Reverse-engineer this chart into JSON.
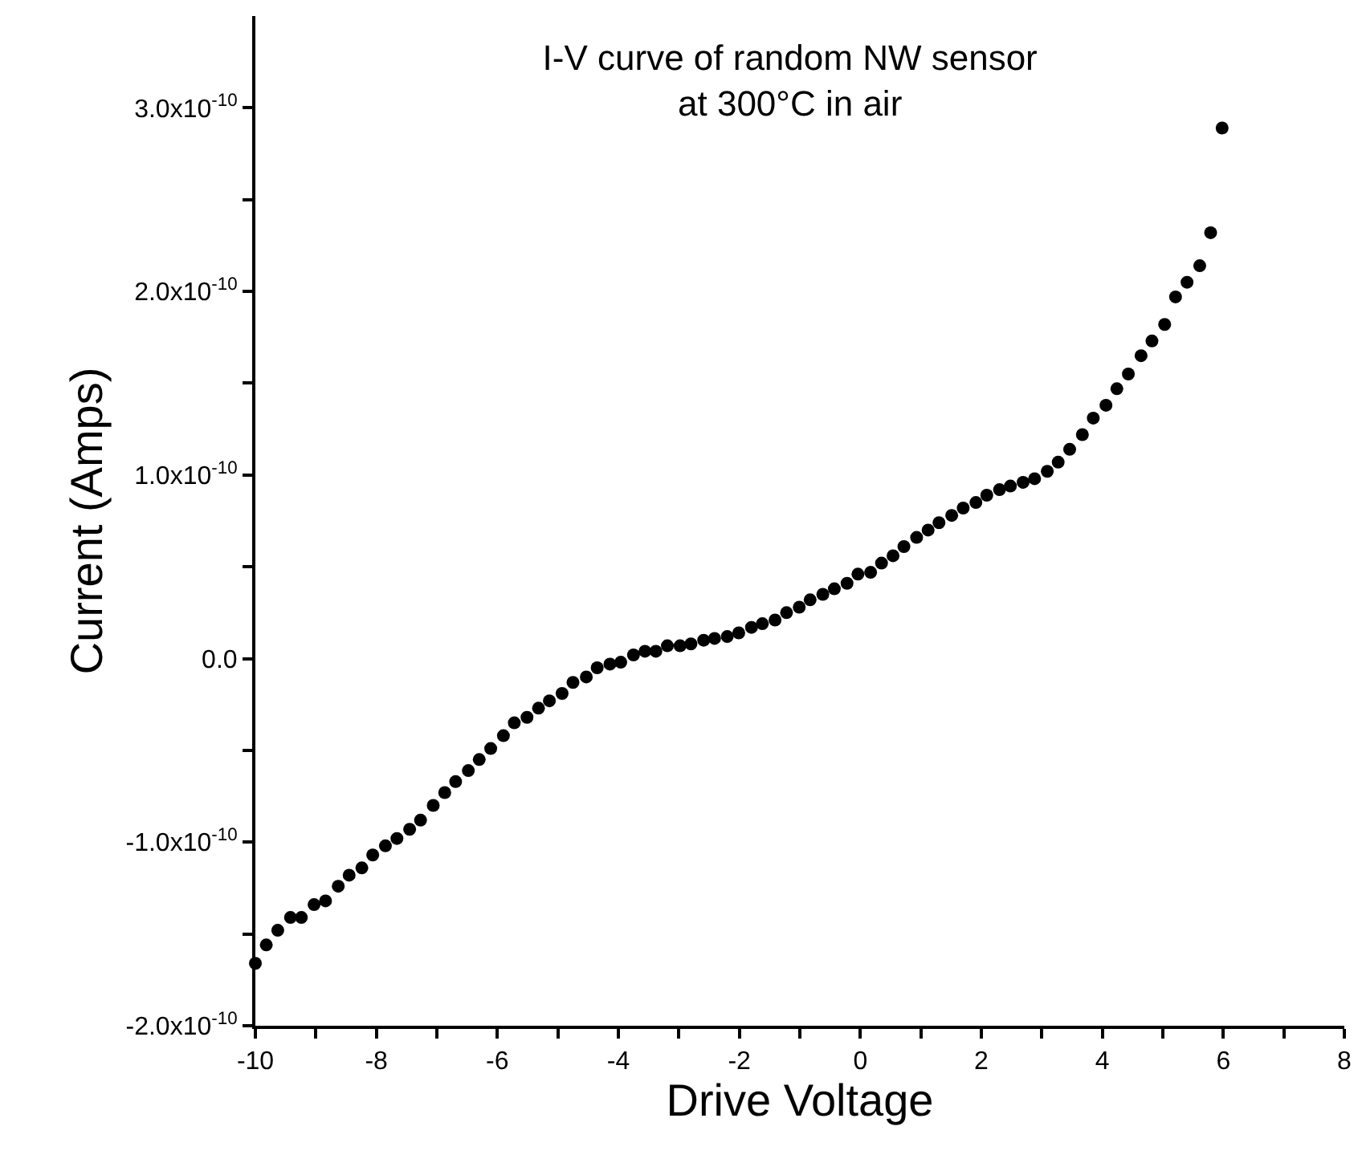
{
  "chart_data": {
    "type": "scatter",
    "title": "I-V curve of random NW sensor\nat 300°C in air",
    "xlabel": "Drive Voltage",
    "ylabel": "Current (Amps)",
    "marker": "circle",
    "xlim": [
      -10,
      8
    ],
    "xticks": [
      -10,
      {
        "value": -9,
        "label": null
      },
      -8,
      {
        "value": -7,
        "label": null
      },
      -6,
      {
        "value": -5,
        "label": null
      },
      -4,
      {
        "value": -3,
        "label": null
      },
      -2,
      {
        "value": -1,
        "label": null
      },
      0,
      {
        "value": 1,
        "label": null
      },
      2,
      {
        "value": 3,
        "label": null
      },
      4,
      {
        "value": 5,
        "label": null
      },
      6,
      {
        "value": 7,
        "label": null
      },
      8
    ],
    "ylim": [
      -2e-10,
      3.5e-10
    ],
    "yticks": [
      {
        "value": -2e-10,
        "label": "-2.0x10$^{-10}$"
      },
      {
        "value": -1.5e-10,
        "label": null
      },
      {
        "value": -1e-10,
        "label": "-1.0x10$^{-10}$"
      },
      {
        "value": -5e-11,
        "label": null
      },
      {
        "value": 0,
        "label": "0.0"
      },
      {
        "value": 5e-11,
        "label": null
      },
      {
        "value": 1e-10,
        "label": "1.0x10$^{-10}$"
      },
      {
        "value": 1.5e-10,
        "label": null
      },
      {
        "value": 2e-10,
        "label": "2.0x10$^{-10}$"
      },
      {
        "value": 2.5e-10,
        "label": null
      },
      {
        "value": 3e-10,
        "label": "3.0x10$^{-10}$"
      }
    ],
    "series": [
      {
        "color": "#000000",
        "x": [
          -10.0,
          -9.82,
          -9.63,
          -9.42,
          -9.24,
          -9.03,
          -8.84,
          -8.63,
          -8.45,
          -8.24,
          -8.06,
          -7.85,
          -7.66,
          -7.45,
          -7.27,
          -7.06,
          -6.87,
          -6.69,
          -6.48,
          -6.3,
          -6.11,
          -5.9,
          -5.72,
          -5.51,
          -5.32,
          -5.14,
          -4.93,
          -4.75,
          -4.53,
          -4.35,
          -4.14,
          -3.96,
          -3.75,
          -3.56,
          -3.38,
          -3.19,
          -2.98,
          -2.8,
          -2.59,
          -2.41,
          -2.2,
          -2.01,
          -1.8,
          -1.62,
          -1.41,
          -1.22,
          -1.01,
          -0.83,
          -0.62,
          -0.43,
          -0.22,
          -0.04,
          0.17,
          0.35,
          0.54,
          0.72,
          0.93,
          1.12,
          1.3,
          1.51,
          1.7,
          1.91,
          2.09,
          2.3,
          2.48,
          2.69,
          2.88,
          3.09,
          3.27,
          3.46,
          3.67,
          3.85,
          4.06,
          4.24,
          4.43,
          4.64,
          4.82,
          5.03,
          5.21,
          5.4,
          5.61,
          5.79,
          5.98
        ],
        "values": [
          -1.66e-10,
          -1.56e-10,
          -1.48e-10,
          -1.41e-10,
          -1.41e-10,
          -1.34e-10,
          -1.32e-10,
          -1.24e-10,
          -1.18e-10,
          -1.14e-10,
          -1.07e-10,
          -1.02e-10,
          -9.8e-11,
          -9.3e-11,
          -8.8e-11,
          -8e-11,
          -7.3e-11,
          -6.7e-11,
          -6.1e-11,
          -5.5e-11,
          -4.9e-11,
          -4.2e-11,
          -3.5e-11,
          -3.2e-11,
          -2.7e-11,
          -2.3e-11,
          -1.9e-11,
          -1.3e-11,
          -1e-11,
          -5e-12,
          -3e-12,
          -2e-12,
          2e-12,
          4e-12,
          4e-12,
          7e-12,
          7e-12,
          8e-12,
          1e-11,
          1.1e-11,
          1.2e-11,
          1.4e-11,
          1.7e-11,
          1.9e-11,
          2.1e-11,
          2.5e-11,
          2.8e-11,
          3.2e-11,
          3.5e-11,
          3.8e-11,
          4.1e-11,
          4.6e-11,
          4.7e-11,
          5.2e-11,
          5.6e-11,
          6.1e-11,
          6.6e-11,
          7e-11,
          7.4e-11,
          7.8e-11,
          8.2e-11,
          8.5e-11,
          8.9e-11,
          9.2e-11,
          9.4e-11,
          9.6e-11,
          9.8e-11,
          1.02e-10,
          1.07e-10,
          1.14e-10,
          1.22e-10,
          1.31e-10,
          1.38e-10,
          1.47e-10,
          1.55e-10,
          1.65e-10,
          1.73e-10,
          1.82e-10,
          1.97e-10,
          2.05e-10,
          2.14e-10,
          2.32e-10,
          2.89e-10
        ]
      }
    ]
  }
}
